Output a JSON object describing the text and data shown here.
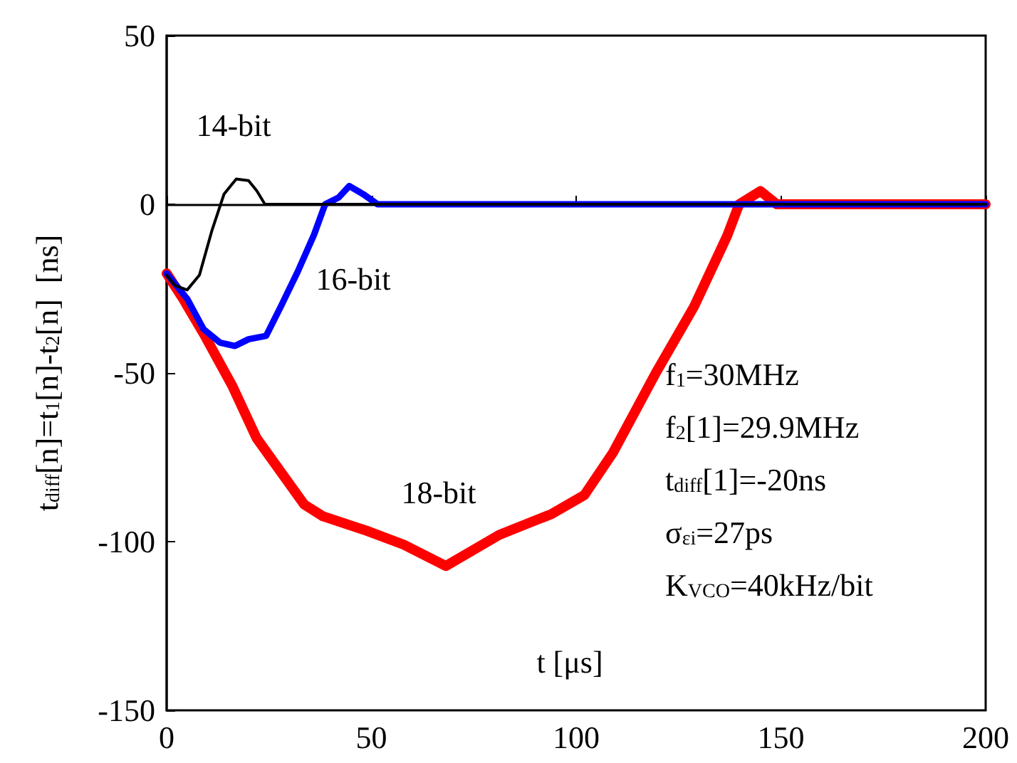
{
  "chart_data": {
    "type": "line",
    "xlabel": "t [μs]",
    "ylabel": "t$_{diff}$[n]=t$_{1}$[n]-t$_{2}$[n]  [ns]",
    "series": [
      {
        "color": "#ff0000",
        "x": [
          0,
          4,
          9.2,
          16.1,
          22,
          27.8,
          33.6,
          38.2,
          48.7,
          57.9,
          68.2,
          81.2,
          94,
          102,
          109,
          119.5,
          128.8,
          136.9,
          139.8,
          145,
          149,
          200
        ],
        "values": [
          -20.5,
          -28,
          -38.7,
          -54,
          -69.4,
          -79.2,
          -89,
          -92.5,
          -96.7,
          -100.9,
          -107.2,
          -98,
          -91.8,
          -86.2,
          -73.6,
          -49.9,
          -30.3,
          -9.3,
          0,
          3.9,
          0,
          0
        ]
      },
      {
        "color": "#0000ff",
        "x": [
          0,
          5,
          9,
          13,
          16.7,
          20,
          24.3,
          28,
          32,
          36,
          38.7,
          42,
          44.6,
          48,
          51.5,
          100,
          200
        ],
        "values": [
          -20.5,
          -28,
          -37,
          -41,
          -42,
          -40,
          -39,
          -30,
          -20,
          -9,
          0,
          2,
          5.4,
          3,
          0,
          0,
          0
        ]
      },
      {
        "color": "#000000",
        "x": [
          0,
          2,
          5,
          8,
          11,
          14,
          17,
          20,
          22,
          24,
          30,
          100,
          200
        ],
        "values": [
          -21,
          -24,
          -25.4,
          -21,
          -8,
          3,
          7.5,
          7,
          4,
          0,
          0,
          0,
          0
        ]
      }
    ],
    "xlim": [
      0,
      200
    ],
    "xticks": [
      0,
      50,
      100,
      150,
      200
    ],
    "ylim": [
      -150,
      50
    ],
    "yticks": [
      -150,
      -100,
      -50,
      0,
      50
    ],
    "marker": "none",
    "line_style": "solid",
    "annotations": [
      "14-bit",
      "16-bit",
      "18-bit",
      "f$_{1}$=30MHz",
      "f$_{2}$[1]=29.9MHz",
      "t$_{diff}$[1]=-20ns",
      "σ$_{εi}$=27ps",
      "K$_{VCO}$=40kHz/bit"
    ]
  }
}
